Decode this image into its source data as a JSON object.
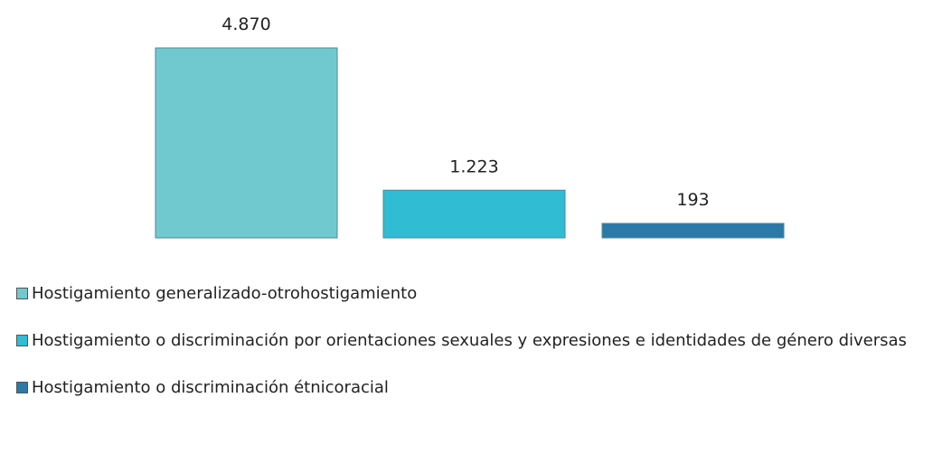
{
  "chart_data": {
    "type": "bar",
    "legend": "bottom",
    "series": [
      {
        "name": "Hostigamiento generalizado-otrohostigamiento",
        "color": "#70c9cf",
        "values": [
          4870
        ],
        "value_labels": [
          "4.870"
        ]
      },
      {
        "name": "Hostigamiento o discriminación por orientaciones sexuales y expresiones e identidades de género diversas",
        "color": "#30bcd2",
        "values": [
          1223
        ],
        "value_labels": [
          "1.223"
        ]
      },
      {
        "name": "Hostigamiento o discriminación étnicoracial",
        "color": "#2a79a8",
        "values": [
          193
        ],
        "value_labels": [
          "193"
        ]
      }
    ]
  }
}
